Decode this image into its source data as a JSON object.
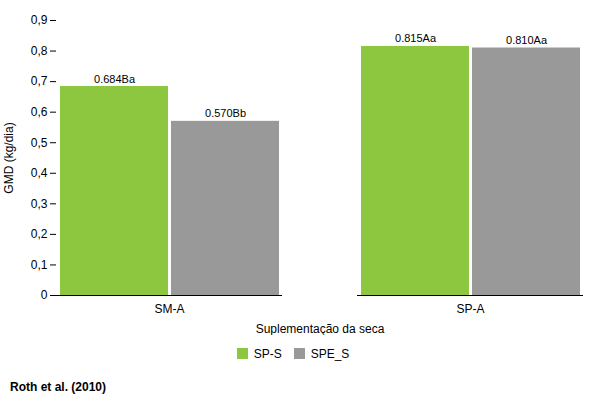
{
  "chart_data": {
    "type": "bar",
    "xlabel": "Suplementação da seca",
    "ylabel": "GMD (kg/dia)",
    "categories": [
      "SM-A",
      "SP-A"
    ],
    "series": [
      {
        "name": "SP-S",
        "color": "#8DC63F",
        "values": [
          0.684,
          0.815
        ],
        "value_labels": [
          "0.684Ba",
          "0.815Aa"
        ]
      },
      {
        "name": "SPE_S",
        "color": "#999999",
        "values": [
          0.57,
          0.81
        ],
        "value_labels": [
          "0.570Bb",
          "0.810Aa"
        ]
      }
    ],
    "ylim": [
      0,
      0.9
    ],
    "yticks": [
      0,
      {
        "value": 0.1,
        "label": "0,1"
      },
      {
        "value": 0.2,
        "label": "0,2"
      },
      {
        "value": 0.3,
        "label": "0,3"
      },
      {
        "value": 0.4,
        "label": "0,4"
      },
      {
        "value": 0.5,
        "label": "0,5"
      },
      {
        "value": 0.6,
        "label": "0,6"
      },
      {
        "value": 0.7,
        "label": "0,7"
      },
      {
        "value": 0.8,
        "label": "0,8"
      },
      {
        "value": 0.9,
        "label": "0,9"
      }
    ],
    "data_labels": true,
    "grid": false,
    "legend": "bottom",
    "annotations": [
      "Roth et al. (2010)"
    ]
  }
}
